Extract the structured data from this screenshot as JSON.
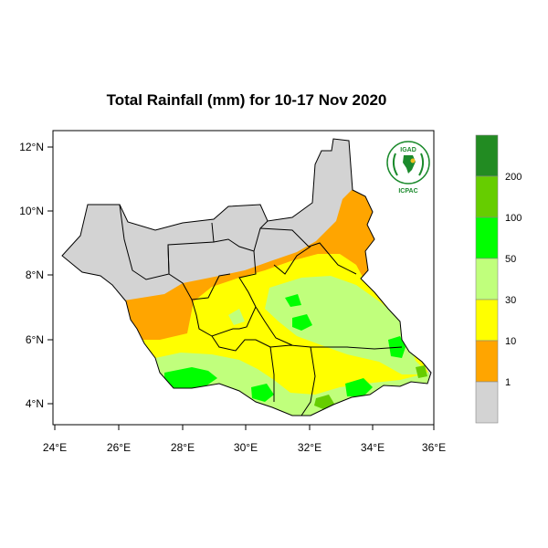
{
  "title": "Total Rainfall (mm) for 10-17 Nov 2020",
  "axes": {
    "lon_labels": [
      "24°E",
      "26°E",
      "28°E",
      "30°E",
      "32°E",
      "34°E",
      "36°E"
    ],
    "lat_labels": [
      "12°N",
      "10°N",
      "8°N",
      "6°N",
      "4°N"
    ]
  },
  "legend": {
    "colors": [
      "#228b22",
      "#66cd00",
      "#00ff00",
      "#c0ff7c",
      "#ffff00",
      "#ffa500",
      "#d3d3d3"
    ],
    "labels": [
      "200",
      "100",
      "50",
      "30",
      "10",
      "1"
    ]
  },
  "logo": {
    "top_text": "IGAD",
    "bottom_text": "ICPAC",
    "accent": "#1b8a2c"
  },
  "colors": {
    "no_rain": "#d3d3d3",
    "r1_10": "#ffa500",
    "r10_30": "#ffff00",
    "r30_50": "#c0ff7c",
    "r50_100": "#00ff00",
    "r100_200": "#66cd00",
    "r200_plus": "#228b22"
  }
}
